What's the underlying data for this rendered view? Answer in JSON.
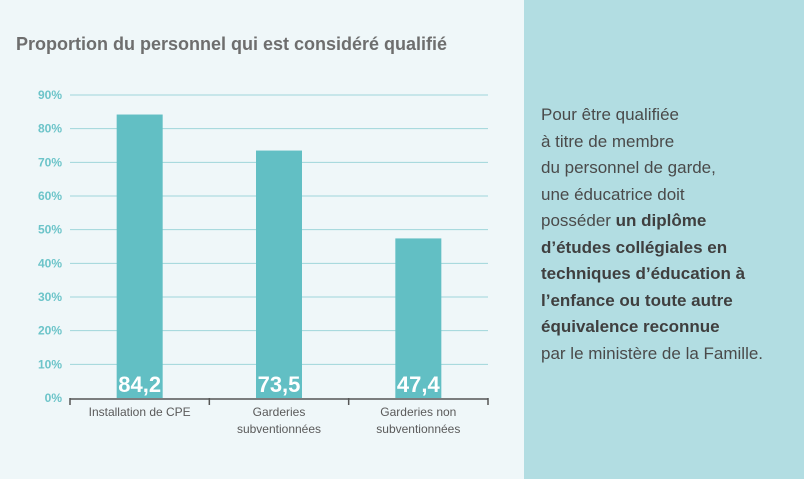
{
  "chart_data": {
    "type": "bar",
    "title": "Proportion du personnel qui est considéré qualifié",
    "categories": [
      "Installation de CPE",
      "Garderies subventionnées",
      "Garderies non subventionnées"
    ],
    "category_lines": [
      [
        "Installation de CPE"
      ],
      [
        "Garderies",
        "subventionnées"
      ],
      [
        "Garderies non",
        "subventionnées"
      ]
    ],
    "values": [
      84.2,
      73.5,
      47.4
    ],
    "value_labels": [
      "84,2",
      "73,5",
      "47,4"
    ],
    "yticks": [
      "0%",
      "10%",
      "20%",
      "30%",
      "40%",
      "50%",
      "60%",
      "70%",
      "80%",
      "90%"
    ],
    "ylim": [
      0,
      90
    ],
    "grid": true,
    "xlabel": "",
    "ylabel": "",
    "colors": {
      "bar": "#62bfc4",
      "grid": "#9fd6da",
      "tick": "#6cc4c9",
      "axis": "#555555"
    }
  },
  "sidebar": {
    "lines": [
      {
        "normal": "Pour être qualifiée"
      },
      {
        "normal": "à titre de membre"
      },
      {
        "normal": "du personnel de garde,"
      },
      {
        "normal": "une éducatrice doit"
      },
      {
        "normal": "posséder ",
        "bold": "un diplôme"
      },
      {
        "bold": "d’études collégiales en"
      },
      {
        "bold": "techniques d’éducation à"
      },
      {
        "bold": "l’enfance ou toute autre"
      },
      {
        "bold": "équivalence reconnue"
      },
      {
        "normal": "par le ministère de la Famille."
      }
    ]
  }
}
